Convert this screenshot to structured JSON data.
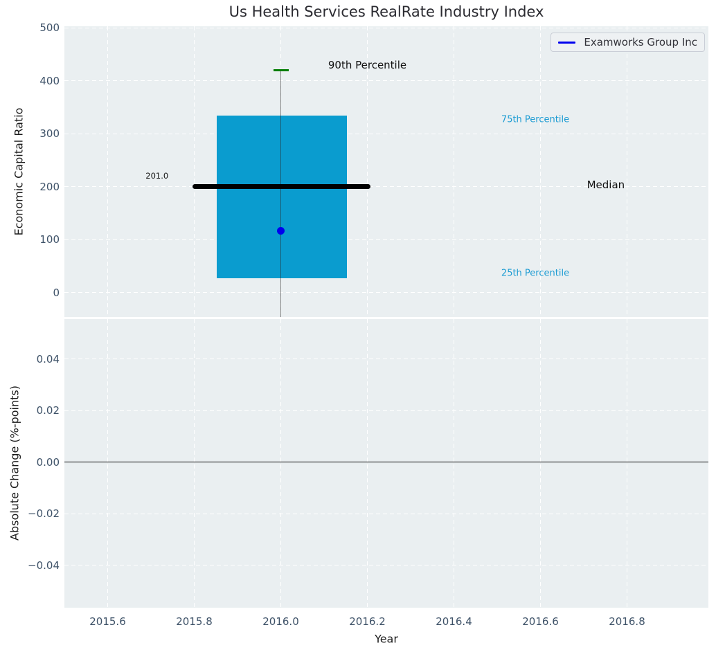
{
  "title": "Us Health Services RealRate Industry Index",
  "legend": {
    "label": "Examworks Group Inc"
  },
  "colors": {
    "axes_background": "#eaeff1",
    "grid": "#ffffff",
    "tick_label": "#3e5268",
    "box_fill": "#0a9ccf",
    "percentile_cap_green": "#007d00",
    "median_line": "#000000",
    "whisker": "#5a5a5a",
    "company_dot": "#0000ee",
    "percentile_text_cyan": "#1d9cd3",
    "annotation_black": "#111111",
    "zero_line": "#000000",
    "legend_line_blue": "#0000ee"
  },
  "chart_data": [
    {
      "type": "box",
      "title": "Us Health Services RealRate Industry Index",
      "ylabel": "Economic Capital Ratio",
      "xlim": [
        2015.5,
        2016.988
      ],
      "ylim": [
        -46,
        503
      ],
      "grid": true,
      "legend_position": "upper right",
      "yticks": [
        0,
        100,
        200,
        300,
        400,
        500
      ],
      "ytick_labels": [
        "0",
        "100",
        "200",
        "300",
        "400",
        "500"
      ],
      "xticks": [
        2015.6,
        2015.8,
        2016.0,
        2016.2,
        2016.4,
        2016.6,
        2016.8
      ],
      "xtick_labels": [],
      "box": {
        "x_center": 2016.0,
        "box_left": 2015.852,
        "box_right": 2016.153,
        "p90": 420,
        "p75": 335,
        "median": 201.0,
        "p25": 27,
        "whisker_low_clipped": -46,
        "median_line_left": 2015.796,
        "median_line_right": 2016.207,
        "cap_left": 2015.983,
        "cap_right": 2016.019
      },
      "company_point": {
        "name": "Examworks Group Inc",
        "x": 2016.0,
        "y": 117
      },
      "annotations": [
        {
          "text": "201.0",
          "x": 2015.714,
          "y": 221,
          "color": "#111111",
          "size": 11.5
        },
        {
          "text": "90th Percentile",
          "x": 2016.2,
          "y": 430,
          "color": "#111111",
          "size": 15
        },
        {
          "text": "75th Percentile",
          "x": 2016.588,
          "y": 327,
          "color": "#1d9cd3",
          "size": 13
        },
        {
          "text": "Median",
          "x": 2016.751,
          "y": 204,
          "color": "#111111",
          "size": 15
        },
        {
          "text": "25th Percentile",
          "x": 2016.588,
          "y": 36,
          "color": "#1d9cd3",
          "size": 13
        }
      ]
    },
    {
      "type": "line",
      "ylabel": "Absolute Change (%-points)",
      "xlabel": "Year",
      "xlim": [
        2015.5,
        2016.988
      ],
      "ylim": [
        -0.0565,
        0.0555
      ],
      "grid": true,
      "yticks": [
        0.04,
        0.02,
        0.0,
        -0.02,
        -0.04
      ],
      "ytick_labels": [
        "0.04",
        "0.02",
        "0.00",
        "−0.02",
        "−0.04"
      ],
      "xticks": [
        2015.6,
        2015.8,
        2016.0,
        2016.2,
        2016.4,
        2016.6,
        2016.8
      ],
      "xtick_labels": [
        "2015.6",
        "2015.8",
        "2016.0",
        "2016.2",
        "2016.4",
        "2016.6",
        "2016.8"
      ],
      "zero_line": 0.0,
      "series": []
    }
  ]
}
